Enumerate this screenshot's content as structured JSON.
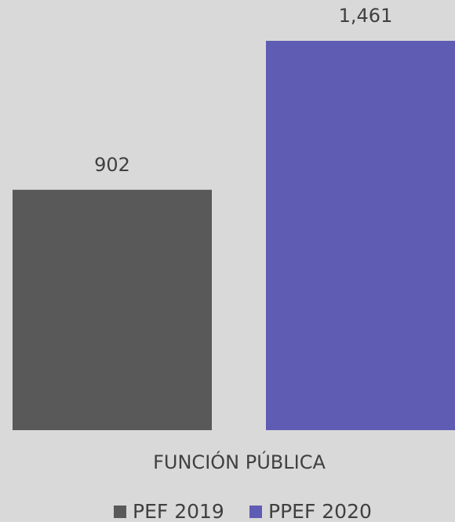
{
  "chart_data": {
    "type": "bar",
    "categories": [
      "FUNCIÓN PÚBLICA"
    ],
    "series": [
      {
        "name": "PEF 2019",
        "color": "#595959",
        "values": [
          902
        ]
      },
      {
        "name": "PPEF 2020",
        "color": "#5f5db3",
        "values": [
          1461
        ],
        "value_labels": [
          "1,461"
        ]
      }
    ]
  }
}
